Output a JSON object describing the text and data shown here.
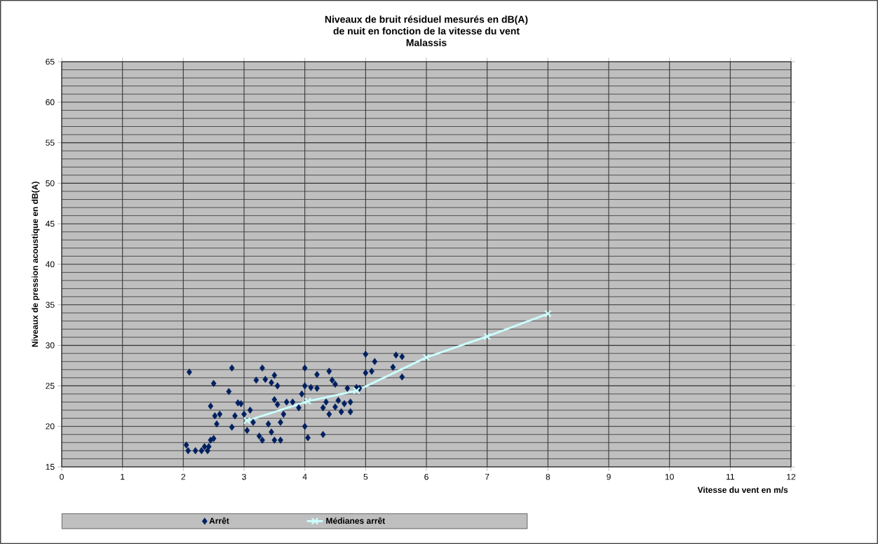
{
  "chart_data": {
    "type": "scatter",
    "title": "Niveaux de bruit résiduel mesurés en dB(A)\nde nuit en fonction de la vitesse du vent\nMalassis",
    "xlabel": "Vitesse du vent en m/s",
    "ylabel": "Niveaux de pression acoustique en dB(A)",
    "xlim": [
      0,
      12
    ],
    "xticks": [
      0,
      1,
      2,
      3,
      4,
      5,
      6,
      7,
      8,
      9,
      10,
      11,
      12
    ],
    "ylim": [
      15,
      65
    ],
    "yticks": [
      15,
      20,
      25,
      30,
      35,
      40,
      45,
      50,
      55,
      60,
      65
    ],
    "grid": true,
    "legend": "bottom",
    "series": [
      {
        "name": "Arrêt",
        "marker": "diamond",
        "color": "#002060",
        "x": [
          2.05,
          2.08,
          2.1,
          2.2,
          2.3,
          2.35,
          2.4,
          2.42,
          2.45,
          2.45,
          2.5,
          2.5,
          2.52,
          2.55,
          2.6,
          2.75,
          2.8,
          2.8,
          2.85,
          2.9,
          2.95,
          3.0,
          3.05,
          3.1,
          3.15,
          3.2,
          3.25,
          3.3,
          3.3,
          3.35,
          3.4,
          3.45,
          3.45,
          3.5,
          3.5,
          3.5,
          3.55,
          3.55,
          3.6,
          3.6,
          3.65,
          3.7,
          3.8,
          3.9,
          3.95,
          4.0,
          4.0,
          4.0,
          4.05,
          4.1,
          4.2,
          4.2,
          4.3,
          4.3,
          4.35,
          4.4,
          4.4,
          4.45,
          4.5,
          4.5,
          4.55,
          4.6,
          4.65,
          4.7,
          4.75,
          4.75,
          4.85,
          4.9,
          5.0,
          5.0,
          5.1,
          5.15,
          5.45,
          5.5,
          5.6,
          5.6
        ],
        "values": [
          17.7,
          17.0,
          26.7,
          17.0,
          17.0,
          17.5,
          17.0,
          17.5,
          18.3,
          22.5,
          25.3,
          18.5,
          21.3,
          20.3,
          21.5,
          24.3,
          27.2,
          19.9,
          21.3,
          22.9,
          22.8,
          21.5,
          19.5,
          22.0,
          20.5,
          25.7,
          18.8,
          27.2,
          18.3,
          25.8,
          20.3,
          25.4,
          19.3,
          26.3,
          23.3,
          18.3,
          25.0,
          22.7,
          18.3,
          20.5,
          21.5,
          23.0,
          23.0,
          22.3,
          24.0,
          27.2,
          25.0,
          20.0,
          18.6,
          24.8,
          26.4,
          24.7,
          22.3,
          19.0,
          23.0,
          26.8,
          21.5,
          25.7,
          25.2,
          22.4,
          23.2,
          21.8,
          22.8,
          24.7,
          23.0,
          21.8,
          24.8,
          24.7,
          26.6,
          28.9,
          26.8,
          28.0,
          27.3,
          28.8,
          28.6,
          26.1
        ]
      },
      {
        "name": "Médianes arrêt",
        "type": "line",
        "marker": "cross",
        "color": "#ccffff",
        "x": [
          3.05,
          4.05,
          4.85,
          6.0,
          7.0,
          8.0
        ],
        "values": [
          20.7,
          23.1,
          24.4,
          28.5,
          31.1,
          33.9
        ]
      }
    ]
  }
}
